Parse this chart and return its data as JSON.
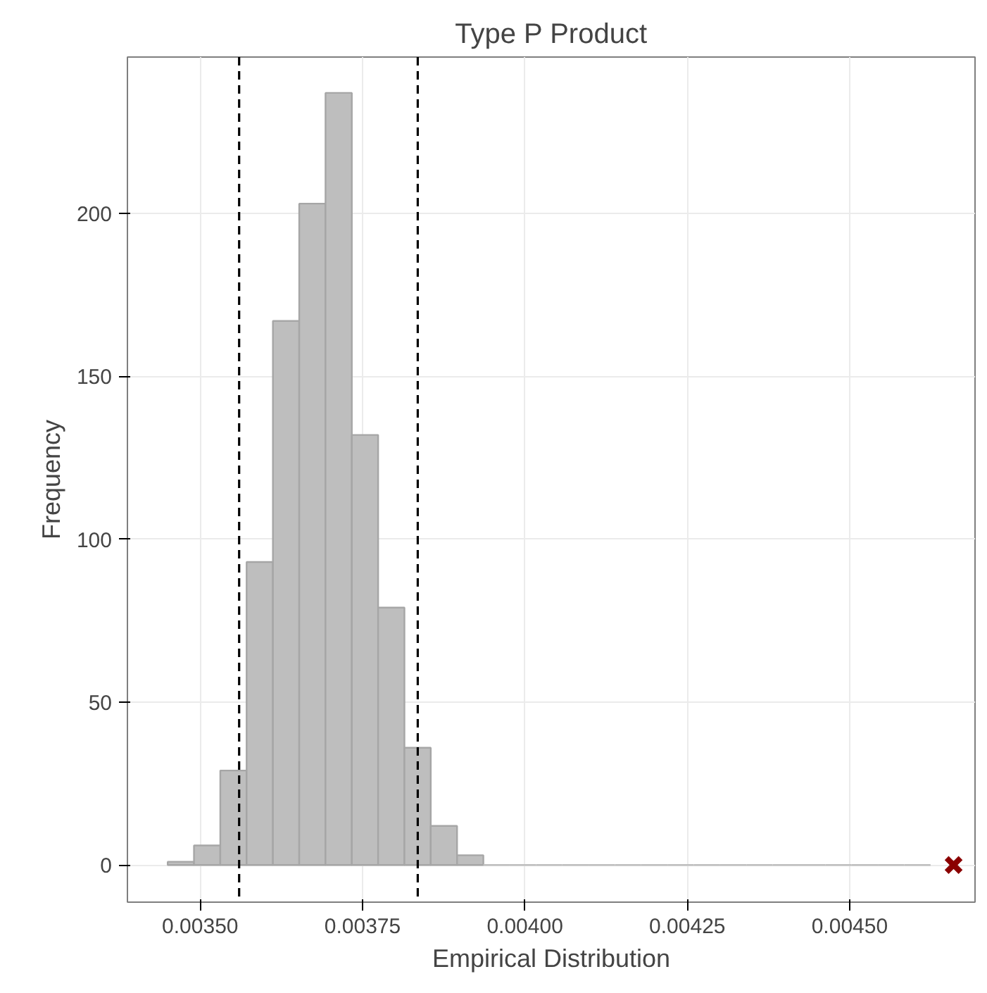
{
  "chart_data": {
    "type": "histogram",
    "title": "Type P Product",
    "xlabel": "Empirical Distribution",
    "ylabel": "Frequency",
    "bins": [
      0.00345,
      0.0034905,
      0.003531,
      0.0035715,
      0.003612,
      0.0036525,
      0.003693,
      0.0037335,
      0.003774,
      0.0038145,
      0.003855,
      0.0038955,
      0.003936,
      0.0039765,
      0.004017,
      0.0040575,
      0.004098,
      0.0041385,
      0.004179,
      0.0042195,
      0.00426,
      0.0043005,
      0.004341,
      0.0043815,
      0.004422,
      0.0044625,
      0.004503,
      0.0045435,
      0.004584,
      0.0046245
    ],
    "series": [
      {
        "color": "#bebebe",
        "values": [
          1,
          6,
          29,
          93,
          167,
          203,
          237,
          132,
          79,
          36,
          12,
          3,
          0,
          0,
          0,
          0,
          0,
          0,
          0,
          0,
          0,
          0,
          0,
          0,
          0,
          0,
          0,
          0,
          0
        ]
      },
      {
        "type": "scatter",
        "color": "#8b0000",
        "marker": "cross",
        "x": [
          0.00466
        ],
        "values": [
          0
        ]
      }
    ],
    "xlim": [
      0.003388,
      0.004693
    ],
    "ylim": [
      -11.4,
      248
    ],
    "xticks": [
      {
        "value": 0.0035,
        "label": "0.00350"
      },
      {
        "value": 0.00375,
        "label": "0.00375"
      },
      {
        "value": 0.004,
        "label": "0.00400"
      },
      {
        "value": 0.00425,
        "label": "0.00425"
      },
      {
        "value": 0.0045,
        "label": "0.00450"
      }
    ],
    "yticks": [
      0,
      50,
      100,
      150,
      200
    ],
    "ref_lines": [
      {
        "axis": "x",
        "value": 0.00356,
        "line_style": "dashed",
        "color": "#000000"
      },
      {
        "axis": "x",
        "value": 0.003835,
        "line_style": "dashed",
        "color": "#000000"
      }
    ],
    "grid": true
  }
}
